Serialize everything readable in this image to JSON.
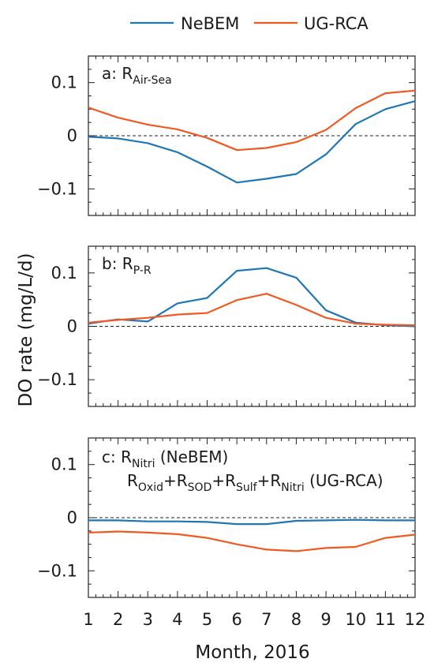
{
  "legend": {
    "items": [
      {
        "name": "NeBEM",
        "color": "#1f77b4"
      },
      {
        "name": "UG-RCA",
        "color": "#f05a22"
      }
    ]
  },
  "ylabel": "DO rate (mg/L/d)",
  "xlabel": "Month, 2016",
  "chart_data": [
    {
      "type": "line",
      "panel": "a",
      "label_parts": [
        "a: R",
        "Air-Sea"
      ],
      "x": [
        1,
        2,
        3,
        4,
        5,
        6,
        7,
        8,
        9,
        10,
        11,
        12
      ],
      "ylim": [
        -0.15,
        0.15
      ],
      "yticks": [
        0.1,
        0,
        -0.1
      ],
      "ytick_labels": [
        "0.1",
        "0",
        "−0.1"
      ],
      "zero_line": "dashed",
      "series": [
        {
          "name": "NeBEM",
          "color": "#1f77b4",
          "values": [
            -0.002,
            -0.005,
            -0.014,
            -0.031,
            -0.058,
            -0.088,
            -0.081,
            -0.072,
            -0.035,
            0.022,
            0.05,
            0.065
          ]
        },
        {
          "name": "UG-RCA",
          "color": "#f05a22",
          "values": [
            0.053,
            0.034,
            0.021,
            0.012,
            -0.004,
            -0.027,
            -0.023,
            -0.012,
            0.011,
            0.052,
            0.08,
            0.085
          ]
        }
      ]
    },
    {
      "type": "line",
      "panel": "b",
      "label_parts": [
        "b: R",
        "P-R"
      ],
      "x": [
        1,
        2,
        3,
        4,
        5,
        6,
        7,
        8,
        9,
        10,
        11,
        12
      ],
      "ylim": [
        -0.15,
        0.15
      ],
      "yticks": [
        0.1,
        0,
        -0.1
      ],
      "ytick_labels": [
        "0.1",
        "0",
        "−0.1"
      ],
      "zero_line": "dashed",
      "series": [
        {
          "name": "NeBEM",
          "color": "#1f77b4",
          "values": [
            0.005,
            0.013,
            0.009,
            0.043,
            0.053,
            0.104,
            0.109,
            0.091,
            0.03,
            0.007,
            0.002,
            0.0
          ]
        },
        {
          "name": "UG-RCA",
          "color": "#f05a22",
          "values": [
            0.007,
            0.012,
            0.016,
            0.022,
            0.025,
            0.049,
            0.061,
            0.04,
            0.016,
            0.005,
            0.003,
            0.002
          ]
        }
      ]
    },
    {
      "type": "line",
      "panel": "c",
      "label_line1": [
        "c: R",
        "Nitri",
        " (NeBEM)"
      ],
      "label_line2": [
        "R",
        "Oxid",
        "+R",
        "SOD",
        "+R",
        "Sulf",
        "+R",
        "Nitri",
        " (UG-RCA)"
      ],
      "x": [
        1,
        2,
        3,
        4,
        5,
        6,
        7,
        8,
        9,
        10,
        11,
        12
      ],
      "ylim": [
        -0.15,
        0.15
      ],
      "yticks": [
        0.1,
        0,
        -0.1
      ],
      "ytick_labels": [
        "0.1",
        "0",
        "−0.1"
      ],
      "xtick_labels": [
        "1",
        "2",
        "3",
        "4",
        "5",
        "6",
        "7",
        "8",
        "9",
        "10",
        "11",
        "12"
      ],
      "zero_line": "dashed",
      "series": [
        {
          "name": "NeBEM",
          "color": "#1f77b4",
          "values": [
            -0.005,
            -0.005,
            -0.007,
            -0.007,
            -0.008,
            -0.012,
            -0.012,
            -0.006,
            -0.005,
            -0.004,
            -0.005,
            -0.005
          ]
        },
        {
          "name": "UG-RCA",
          "color": "#f05a22",
          "values": [
            -0.028,
            -0.026,
            -0.028,
            -0.031,
            -0.038,
            -0.05,
            -0.06,
            -0.063,
            -0.057,
            -0.055,
            -0.038,
            -0.032
          ]
        }
      ]
    }
  ]
}
